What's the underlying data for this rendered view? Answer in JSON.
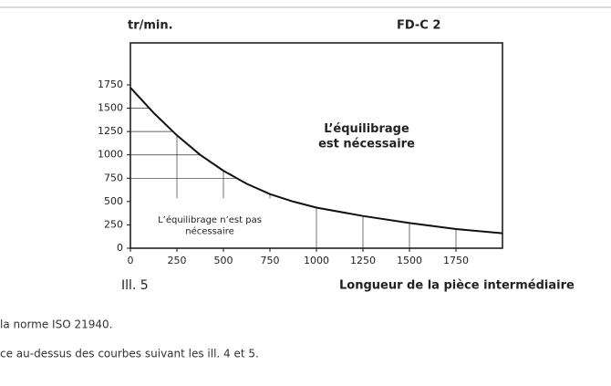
{
  "chart_data": {
    "type": "line",
    "y_label": "tr/min.",
    "title": "FD-C 2",
    "x_label": "Longueur de la pièce intermédiaire",
    "figure_label": "Ill. 5",
    "annotations": [
      "L’équilibrage\nest nécessaire",
      "L’équilibrage n’est pas\nnécessaire"
    ],
    "x": [
      0,
      125,
      250,
      375,
      500,
      625,
      750,
      875,
      1000,
      1250,
      1500,
      1750,
      2000
    ],
    "series": [
      {
        "name": "FD-C 2",
        "color": "#111111",
        "values": [
          1720,
          1450,
          1210,
          1000,
          830,
          690,
          580,
          500,
          435,
          345,
          270,
          205,
          160
        ]
      }
    ],
    "xlim": [
      0,
      2000
    ],
    "ylim": [
      0,
      2200
    ],
    "xticks": [
      0,
      250,
      500,
      750,
      1000,
      1250,
      1500,
      1750
    ],
    "yticks": [
      0,
      250,
      500,
      750,
      1000,
      1250,
      1500,
      1750
    ]
  },
  "text_lines": [
    "la norme ISO 21940.",
    "ce au-dessus des courbes suivant les ill. 4 et 5."
  ]
}
